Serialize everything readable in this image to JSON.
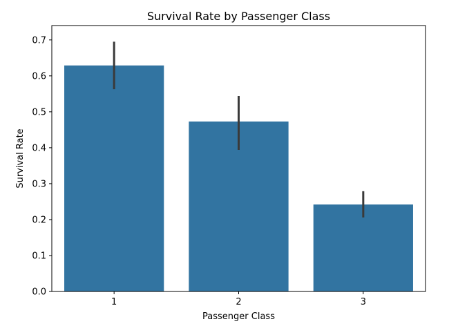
{
  "chart_data": {
    "type": "bar",
    "title": "Survival Rate by Passenger Class",
    "xlabel": "Passenger Class",
    "ylabel": "Survival Rate",
    "categories": [
      "1",
      "2",
      "3"
    ],
    "values": [
      0.629,
      0.473,
      0.242
    ],
    "error_low": [
      0.563,
      0.394,
      0.206
    ],
    "error_high": [
      0.695,
      0.544,
      0.279
    ],
    "ylim": [
      0,
      0.74
    ],
    "yticks": [
      "0.0",
      "0.1",
      "0.2",
      "0.3",
      "0.4",
      "0.5",
      "0.6",
      "0.7"
    ],
    "grid": false,
    "bar_color": "#3274a1",
    "errorbar_color": "#3a3a3a"
  }
}
